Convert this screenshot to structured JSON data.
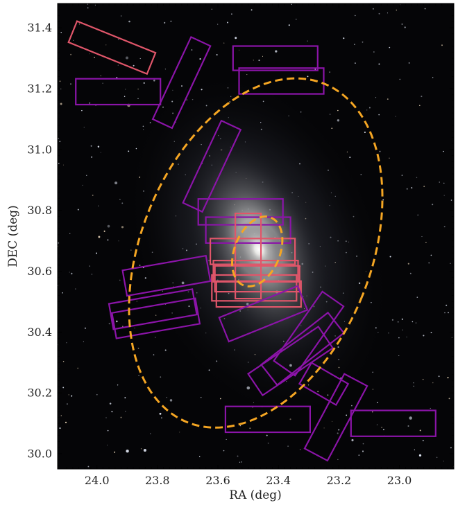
{
  "chart_data": {
    "type": "scatter",
    "title": "",
    "xlabel": "RA (deg)",
    "ylabel": "DEC (deg)",
    "xlim": [
      24.13,
      22.82
    ],
    "ylim": [
      29.95,
      31.48
    ],
    "x_ticks": [
      "24.0",
      "23.8",
      "23.6",
      "23.4",
      "23.2",
      "23.0"
    ],
    "x_tick_values": [
      24.0,
      23.8,
      23.6,
      23.4,
      23.2,
      23.0
    ],
    "y_ticks": [
      "30.0",
      "30.2",
      "30.4",
      "30.6",
      "30.8",
      "31.0",
      "31.2",
      "31.4"
    ],
    "y_tick_values": [
      30.0,
      30.2,
      30.4,
      30.6,
      30.8,
      31.0,
      31.2,
      31.4
    ],
    "grid": false,
    "legend": "none",
    "background": "optical image of a spiral galaxy",
    "colors": {
      "outer_ellipse": "#f5a623",
      "inner_ellipse": "#f5a623",
      "footprint_purple": "#8b14a8",
      "footprint_pink": "#e0566a"
    },
    "ellipses": [
      {
        "name": "outer",
        "ra": 23.475,
        "dec": 30.66,
        "a": 0.6,
        "b": 0.38,
        "pa": 22
      },
      {
        "name": "inner",
        "ra": 23.47,
        "dec": 30.665,
        "a": 0.12,
        "b": 0.075,
        "pa": 22
      }
    ],
    "footprints": [
      {
        "color": "pink",
        "ra": 23.95,
        "dec": 31.335,
        "w": 0.28,
        "h": 0.075,
        "pa": -22
      },
      {
        "color": "purple",
        "ra": 23.93,
        "dec": 31.19,
        "w": 0.28,
        "h": 0.085,
        "pa": 0
      },
      {
        "color": "purple",
        "ra": 23.72,
        "dec": 31.22,
        "w": 0.3,
        "h": 0.07,
        "pa": 65
      },
      {
        "color": "purple",
        "ra": 23.41,
        "dec": 31.3,
        "w": 0.28,
        "h": 0.08,
        "pa": 0
      },
      {
        "color": "purple",
        "ra": 23.39,
        "dec": 31.225,
        "w": 0.28,
        "h": 0.085,
        "pa": 0
      },
      {
        "color": "purple",
        "ra": 23.62,
        "dec": 30.945,
        "w": 0.3,
        "h": 0.07,
        "pa": 65
      },
      {
        "color": "purple",
        "ra": 23.525,
        "dec": 30.795,
        "w": 0.28,
        "h": 0.085,
        "pa": 0
      },
      {
        "color": "purple",
        "ra": 23.5,
        "dec": 30.735,
        "w": 0.28,
        "h": 0.085,
        "pa": 0
      },
      {
        "color": "pink",
        "ra": 23.485,
        "dec": 30.665,
        "w": 0.28,
        "h": 0.085,
        "pa": 0
      },
      {
        "color": "pink",
        "ra": 23.5,
        "dec": 30.65,
        "w": 0.085,
        "h": 0.28,
        "pa": 0
      },
      {
        "color": "pink",
        "ra": 23.475,
        "dec": 30.6,
        "w": 0.28,
        "h": 0.07,
        "pa": 0
      },
      {
        "color": "pink",
        "ra": 23.47,
        "dec": 30.575,
        "w": 0.28,
        "h": 0.085,
        "pa": 0
      },
      {
        "color": "pink",
        "ra": 23.48,
        "dec": 30.545,
        "w": 0.28,
        "h": 0.085,
        "pa": 0
      },
      {
        "color": "pink",
        "ra": 23.465,
        "dec": 30.525,
        "w": 0.28,
        "h": 0.085,
        "pa": 0
      },
      {
        "color": "purple",
        "ra": 23.77,
        "dec": 30.585,
        "w": 0.28,
        "h": 0.085,
        "pa": 10
      },
      {
        "color": "purple",
        "ra": 23.815,
        "dec": 30.475,
        "w": 0.28,
        "h": 0.085,
        "pa": 10
      },
      {
        "color": "purple",
        "ra": 23.805,
        "dec": 30.445,
        "w": 0.28,
        "h": 0.085,
        "pa": 10
      },
      {
        "color": "purple",
        "ra": 23.45,
        "dec": 30.46,
        "w": 0.28,
        "h": 0.085,
        "pa": 22
      },
      {
        "color": "purple",
        "ra": 23.3,
        "dec": 30.395,
        "w": 0.28,
        "h": 0.085,
        "pa": 55
      },
      {
        "color": "purple",
        "ra": 23.32,
        "dec": 30.345,
        "w": 0.28,
        "h": 0.085,
        "pa": 38
      },
      {
        "color": "purple",
        "ra": 23.36,
        "dec": 30.305,
        "w": 0.28,
        "h": 0.085,
        "pa": 34
      },
      {
        "color": "purple",
        "ra": 23.21,
        "dec": 30.12,
        "w": 0.28,
        "h": 0.085,
        "pa": 62
      },
      {
        "color": "purple",
        "ra": 23.25,
        "dec": 30.23,
        "w": 0.14,
        "h": 0.08,
        "pa": -30
      },
      {
        "color": "purple",
        "ra": 23.435,
        "dec": 30.113,
        "w": 0.28,
        "h": 0.085,
        "pa": 0
      },
      {
        "color": "purple",
        "ra": 23.02,
        "dec": 30.1,
        "w": 0.28,
        "h": 0.085,
        "pa": 0
      }
    ]
  }
}
